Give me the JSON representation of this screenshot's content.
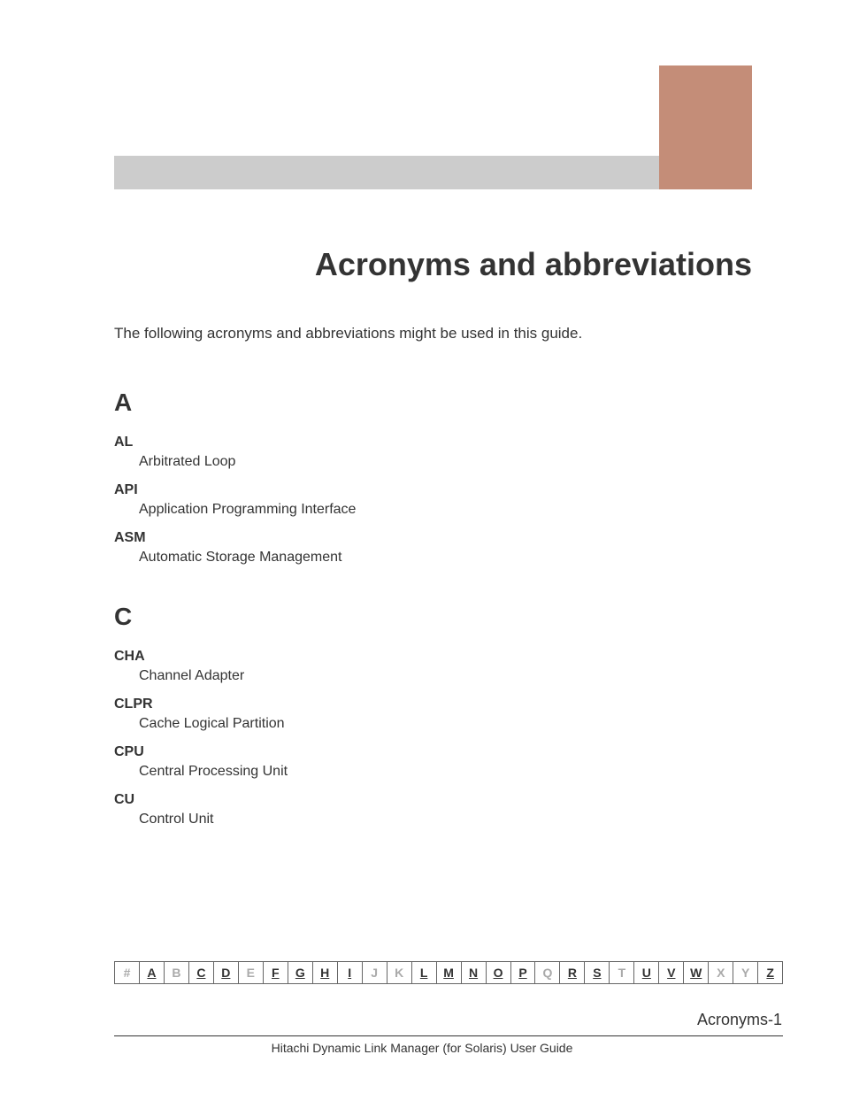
{
  "colors": {
    "page_bg": "#ffffff",
    "text": "#333333",
    "header_grey": "#cccccc",
    "header_block": "#c48d78",
    "nav_border": "#666666",
    "nav_active": "#333333",
    "nav_inactive": "#aaaaaa"
  },
  "fonts": {
    "title_size": 36,
    "section_size": 28,
    "body_size": 17,
    "term_size": 16,
    "nav_size": 14,
    "family": "Verdana, Geneva, sans-serif"
  },
  "title": "Acronyms and abbreviations",
  "intro": "The following acronyms and abbreviations might be used in this guide.",
  "sections": [
    {
      "letter": "A",
      "entries": [
        {
          "term": "AL",
          "def": "Arbitrated Loop"
        },
        {
          "term": "API",
          "def": "Application Programming Interface"
        },
        {
          "term": "ASM",
          "def": "Automatic Storage Management"
        }
      ]
    },
    {
      "letter": "C",
      "entries": [
        {
          "term": "CHA",
          "def": "Channel Adapter"
        },
        {
          "term": "CLPR",
          "def": "Cache Logical Partition"
        },
        {
          "term": "CPU",
          "def": "Central Processing Unit"
        },
        {
          "term": "CU",
          "def": "Control Unit"
        }
      ]
    }
  ],
  "alpha_nav": [
    {
      "label": "#",
      "active": false
    },
    {
      "label": "A",
      "active": true
    },
    {
      "label": "B",
      "active": false
    },
    {
      "label": "C",
      "active": true
    },
    {
      "label": "D",
      "active": true
    },
    {
      "label": "E",
      "active": false
    },
    {
      "label": "F",
      "active": true
    },
    {
      "label": "G",
      "active": true
    },
    {
      "label": "H",
      "active": true
    },
    {
      "label": "I",
      "active": true
    },
    {
      "label": "J",
      "active": false
    },
    {
      "label": "K",
      "active": false
    },
    {
      "label": "L",
      "active": true
    },
    {
      "label": "M",
      "active": true
    },
    {
      "label": "N",
      "active": true
    },
    {
      "label": "O",
      "active": true
    },
    {
      "label": "P",
      "active": true
    },
    {
      "label": "Q",
      "active": false
    },
    {
      "label": "R",
      "active": true
    },
    {
      "label": "S",
      "active": true
    },
    {
      "label": "T",
      "active": false
    },
    {
      "label": "U",
      "active": true
    },
    {
      "label": "V",
      "active": true
    },
    {
      "label": "W",
      "active": true
    },
    {
      "label": "X",
      "active": false
    },
    {
      "label": "Y",
      "active": false
    },
    {
      "label": "Z",
      "active": true
    }
  ],
  "footer": {
    "page_label": "Acronyms-1",
    "doc_title": "Hitachi Dynamic Link Manager (for Solaris) User Guide"
  }
}
